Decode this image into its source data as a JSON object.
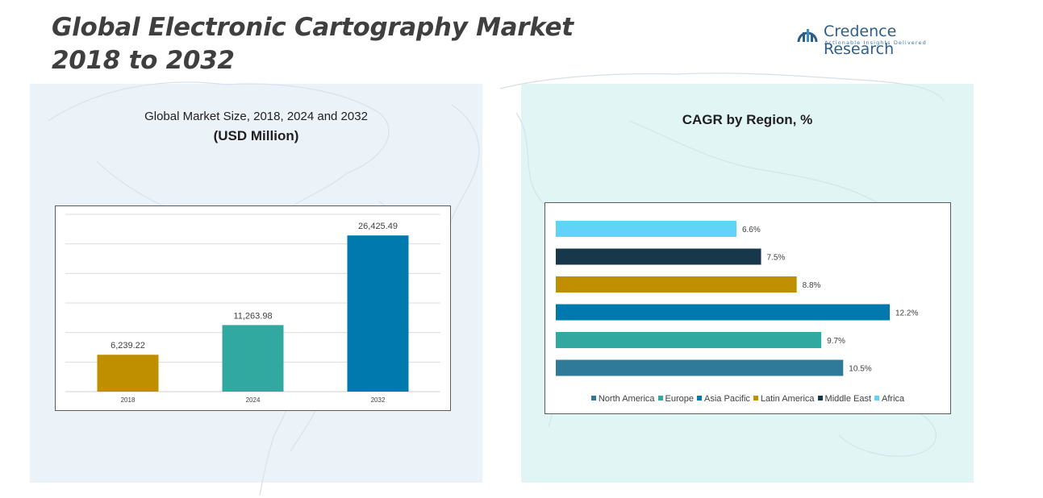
{
  "header": {
    "title_line1": "Global Electronic Cartography Market",
    "title_line2": "2018 to 2032",
    "brand_name": "Credence Research",
    "brand_tagline": "Actionable Insights Delivered"
  },
  "left_panel": {
    "subtitle": "Global Market Size, 2018, 2024 and 2032",
    "unit": "(USD Million)"
  },
  "right_panel": {
    "subtitle": "CAGR by Region, %"
  },
  "colors": {
    "brand": "#2d5e8a",
    "year_2018": "#bf8f00",
    "year_2024": "#31a8a0",
    "year_2032": "#0079ae",
    "north_america": "#2f7a99",
    "europe": "#31a8a0",
    "asia_pacific": "#0079ae",
    "latin_america": "#bf8f00",
    "middle_east": "#17374b",
    "africa": "#5fd3f8"
  },
  "chart_data": [
    {
      "type": "bar",
      "categories": [
        "2018",
        "2024",
        "2032"
      ],
      "values": [
        6239.22,
        11263.98,
        26425.49
      ],
      "value_labels": [
        "6,239.22",
        "11,263.98",
        "26,425.49"
      ],
      "colors": [
        "#bf8f00",
        "#31a8a0",
        "#0079ae"
      ],
      "title": "Global Market Size, 2018, 2024 and 2032",
      "ylabel": "(USD Million)",
      "ylim": [
        0,
        30000
      ],
      "grid": true,
      "legend": "none"
    },
    {
      "type": "bar",
      "orientation": "horizontal",
      "categories": [
        "Africa",
        "Middle East",
        "Latin America",
        "Asia Pacific",
        "Europe",
        "North America"
      ],
      "values": [
        6.6,
        7.5,
        8.8,
        12.2,
        9.7,
        10.5
      ],
      "value_labels": [
        "6.6%",
        "7.5%",
        "8.8%",
        "12.2%",
        "9.7%",
        "10.5%"
      ],
      "colors": [
        "#5fd3f8",
        "#17374b",
        "#bf8f00",
        "#0079ae",
        "#31a8a0",
        "#2f7a99"
      ],
      "title": "CAGR by Region, %",
      "xlim": [
        0,
        12.2
      ],
      "grid": false,
      "legend": "bottom",
      "legend_entries": [
        "North America",
        "Europe",
        "Asia Pacific",
        "Latin America",
        "Middle East",
        "Africa"
      ],
      "legend_colors": [
        "#2f7a99",
        "#31a8a0",
        "#0079ae",
        "#bf8f00",
        "#17374b",
        "#5fd3f8"
      ]
    }
  ]
}
